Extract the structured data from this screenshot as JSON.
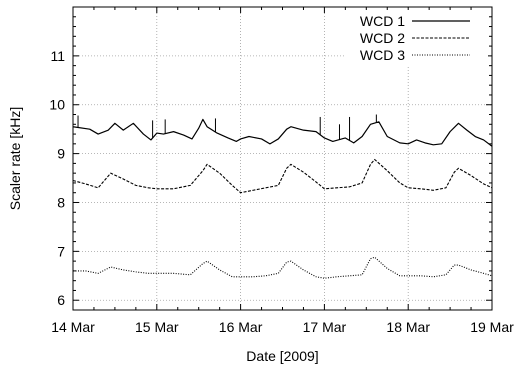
{
  "chart_data": {
    "type": "line",
    "xlabel": "Date [2009]",
    "ylabel": "Scaler rate [kHz]",
    "xlim": [
      0,
      5
    ],
    "ylim": [
      5.8,
      12
    ],
    "x_ticks": [
      {
        "value": 0,
        "label": "14 Mar"
      },
      {
        "value": 1,
        "label": "15 Mar"
      },
      {
        "value": 2,
        "label": "16 Mar"
      },
      {
        "value": 3,
        "label": "17 Mar"
      },
      {
        "value": 4,
        "label": "18 Mar"
      },
      {
        "value": 5,
        "label": "19 Mar"
      }
    ],
    "y_ticks": [
      6,
      7,
      8,
      9,
      10,
      11
    ],
    "grid": true,
    "legend_position": "top-right",
    "series": [
      {
        "name": "WCD 1",
        "style": "solid",
        "x": [
          0,
          0.2,
          0.3,
          0.42,
          0.5,
          0.6,
          0.72,
          0.84,
          0.93,
          1.0,
          1.08,
          1.2,
          1.32,
          1.42,
          1.5,
          1.55,
          1.6,
          1.72,
          1.85,
          1.95,
          2.0,
          2.1,
          2.25,
          2.35,
          2.45,
          2.55,
          2.6,
          2.75,
          2.9,
          3.0,
          3.1,
          3.25,
          3.35,
          3.45,
          3.55,
          3.65,
          3.75,
          3.9,
          4.0,
          4.1,
          4.2,
          4.3,
          4.4,
          4.5,
          4.6,
          4.7,
          4.8,
          4.9,
          5.0
        ],
        "y": [
          9.55,
          9.5,
          9.4,
          9.48,
          9.62,
          9.48,
          9.62,
          9.4,
          9.28,
          9.42,
          9.4,
          9.45,
          9.38,
          9.3,
          9.52,
          9.7,
          9.55,
          9.42,
          9.32,
          9.25,
          9.3,
          9.35,
          9.3,
          9.2,
          9.3,
          9.5,
          9.55,
          9.48,
          9.45,
          9.32,
          9.25,
          9.32,
          9.22,
          9.35,
          9.6,
          9.65,
          9.35,
          9.22,
          9.2,
          9.28,
          9.22,
          9.18,
          9.2,
          9.45,
          9.62,
          9.48,
          9.35,
          9.28,
          9.15
        ],
        "spikes": [
          {
            "x": 0.06,
            "y": 9.78
          },
          {
            "x": 0.95,
            "y": 9.68
          },
          {
            "x": 1.1,
            "y": 9.7
          },
          {
            "x": 1.7,
            "y": 9.72
          },
          {
            "x": 2.95,
            "y": 9.75
          },
          {
            "x": 3.18,
            "y": 9.6
          },
          {
            "x": 3.3,
            "y": 9.75
          },
          {
            "x": 3.62,
            "y": 9.8
          }
        ]
      },
      {
        "name": "WCD 2",
        "style": "dashed",
        "x": [
          0,
          0.15,
          0.3,
          0.45,
          0.6,
          0.75,
          0.9,
          1.0,
          1.2,
          1.4,
          1.55,
          1.6,
          1.75,
          1.9,
          2.0,
          2.15,
          2.3,
          2.45,
          2.55,
          2.6,
          2.75,
          2.9,
          3.0,
          3.15,
          3.3,
          3.45,
          3.55,
          3.6,
          3.75,
          3.9,
          4.0,
          4.15,
          4.3,
          4.45,
          4.55,
          4.6,
          4.75,
          4.9,
          5.0
        ],
        "y": [
          8.45,
          8.38,
          8.3,
          8.6,
          8.48,
          8.35,
          8.3,
          8.28,
          8.28,
          8.35,
          8.65,
          8.78,
          8.6,
          8.35,
          8.2,
          8.25,
          8.3,
          8.35,
          8.7,
          8.78,
          8.62,
          8.42,
          8.28,
          8.3,
          8.32,
          8.4,
          8.78,
          8.88,
          8.65,
          8.4,
          8.3,
          8.28,
          8.25,
          8.3,
          8.62,
          8.7,
          8.55,
          8.38,
          8.3
        ]
      },
      {
        "name": "WCD 3",
        "style": "dotted",
        "x": [
          0,
          0.15,
          0.3,
          0.45,
          0.6,
          0.75,
          0.9,
          1.0,
          1.2,
          1.4,
          1.55,
          1.6,
          1.75,
          1.9,
          2.0,
          2.15,
          2.3,
          2.45,
          2.55,
          2.6,
          2.75,
          2.9,
          3.0,
          3.15,
          3.3,
          3.45,
          3.55,
          3.6,
          3.75,
          3.9,
          4.0,
          4.15,
          4.3,
          4.45,
          4.55,
          4.6,
          4.75,
          4.9,
          5.0
        ],
        "y": [
          6.6,
          6.6,
          6.55,
          6.68,
          6.62,
          6.58,
          6.55,
          6.55,
          6.55,
          6.52,
          6.75,
          6.8,
          6.62,
          6.48,
          6.48,
          6.48,
          6.5,
          6.55,
          6.78,
          6.8,
          6.62,
          6.48,
          6.45,
          6.48,
          6.5,
          6.52,
          6.85,
          6.88,
          6.65,
          6.5,
          6.5,
          6.5,
          6.48,
          6.52,
          6.72,
          6.72,
          6.62,
          6.55,
          6.5
        ]
      }
    ]
  }
}
